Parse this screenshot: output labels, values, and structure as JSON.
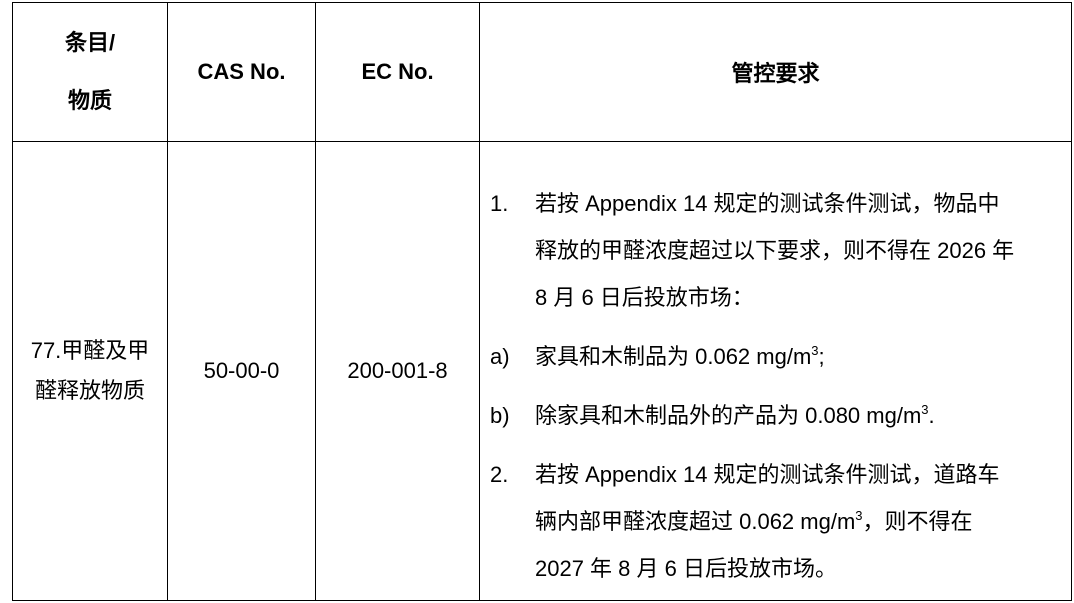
{
  "table": {
    "headers": [
      "条目/",
      "物质",
      "CAS No.",
      "EC No.",
      "管控要求"
    ],
    "row": {
      "item_line1": "77.甲醛及甲",
      "item_line2": "醛释放物质",
      "cas": "50-00-0",
      "ec": "200-001-8",
      "requirements": {
        "p1_num": "1.",
        "p1_l1": "若按 Appendix 14 规定的测试条件测试，物品中",
        "p1_l2": "释放的甲醛浓度超过以下要求，则不得在 2026 年",
        "p1_l3": "8 月 6 日后投放市场：",
        "a_num": "a)",
        "a_text": "家具和木制品为 0.062 mg/m",
        "a_sup": "3",
        "a_end": ";",
        "b_num": "b)",
        "b_text": "除家具和木制品外的产品为 0.080 mg/m",
        "b_sup": "3",
        "b_end": ".",
        "p2_num": "2.",
        "p2_l1": "若按 Appendix 14 规定的测试条件测试，道路车",
        "p2_l2a": "辆内部甲醛浓度超过 0.062 mg/m",
        "p2_sup": "3",
        "p2_l2b": "，则不得在",
        "p2_l3": "2027 年 8 月 6 日后投放市场。"
      }
    }
  }
}
